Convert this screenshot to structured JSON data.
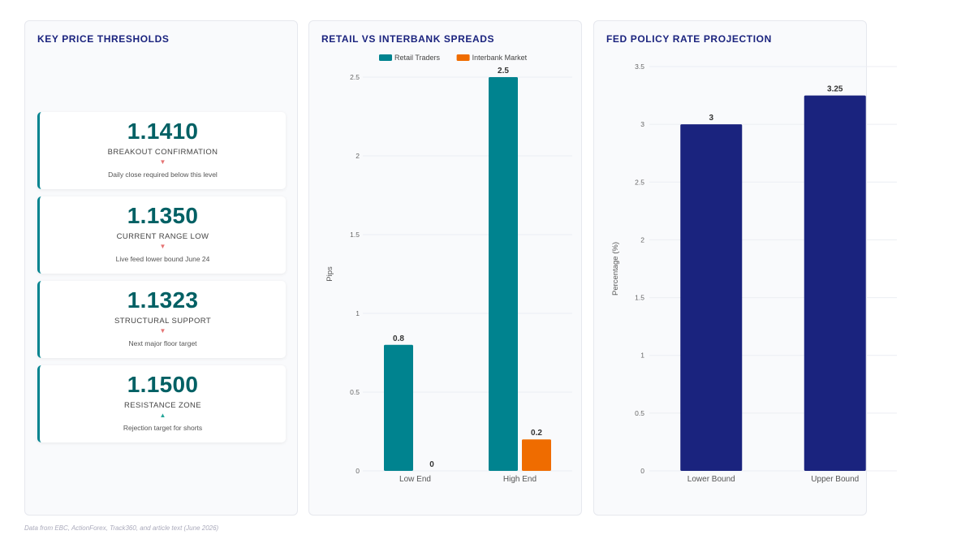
{
  "thresholds": {
    "title": "KEY PRICE THRESHOLDS",
    "items": [
      {
        "value": "1.1410",
        "label": "BREAKOUT CONFIRMATION",
        "direction": "down",
        "arrow": "▼",
        "note": "Daily close required below this level"
      },
      {
        "value": "1.1350",
        "label": "CURRENT RANGE LOW",
        "direction": "down",
        "arrow": "▼",
        "note": "Live feed lower bound June 24"
      },
      {
        "value": "1.1323",
        "label": "STRUCTURAL SUPPORT",
        "direction": "down",
        "arrow": "▼",
        "note": "Next major floor target"
      },
      {
        "value": "1.1500",
        "label": "RESISTANCE ZONE",
        "direction": "up",
        "arrow": "▲",
        "note": "Rejection target for shorts"
      }
    ]
  },
  "colors": {
    "teal": "#00838f",
    "orange": "#ef6c00",
    "navy": "#1a237e",
    "down_arrow": "#e57373",
    "up_arrow": "#26a69a"
  },
  "spreads": {
    "title": "RETAIL VS INTERBANK SPREADS"
  },
  "fed": {
    "title": "FED POLICY RATE PROJECTION"
  },
  "chart_data": [
    {
      "type": "bar",
      "title": "RETAIL VS INTERBANK SPREADS",
      "categories": [
        "Low End",
        "High End"
      ],
      "series": [
        {
          "name": "Retail Traders",
          "values": [
            0.8,
            2.5
          ],
          "color": "#00838f"
        },
        {
          "name": "Interbank Market",
          "values": [
            0,
            0.2
          ],
          "color": "#ef6c00"
        }
      ],
      "xlabel": "",
      "ylabel": "Pips",
      "ylim": [
        0,
        2.5
      ],
      "yticks": [
        0,
        0.5,
        1,
        1.5,
        2,
        2.5
      ],
      "legend": "top-center",
      "grid": true
    },
    {
      "type": "bar",
      "title": "FED POLICY RATE PROJECTION",
      "categories": [
        "Lower Bound",
        "Upper Bound"
      ],
      "series": [
        {
          "values": [
            3,
            3.25
          ],
          "color": "#1a237e"
        }
      ],
      "xlabel": "",
      "ylabel": "Percentage (%)",
      "ylim": [
        0,
        3.5
      ],
      "yticks": [
        0,
        0.5,
        1,
        1.5,
        2,
        2.5,
        3,
        3.5
      ],
      "grid": true
    }
  ],
  "footer": {
    "source": "Data from EBC, ActionForex, Track360, and article text (June 2026)"
  }
}
